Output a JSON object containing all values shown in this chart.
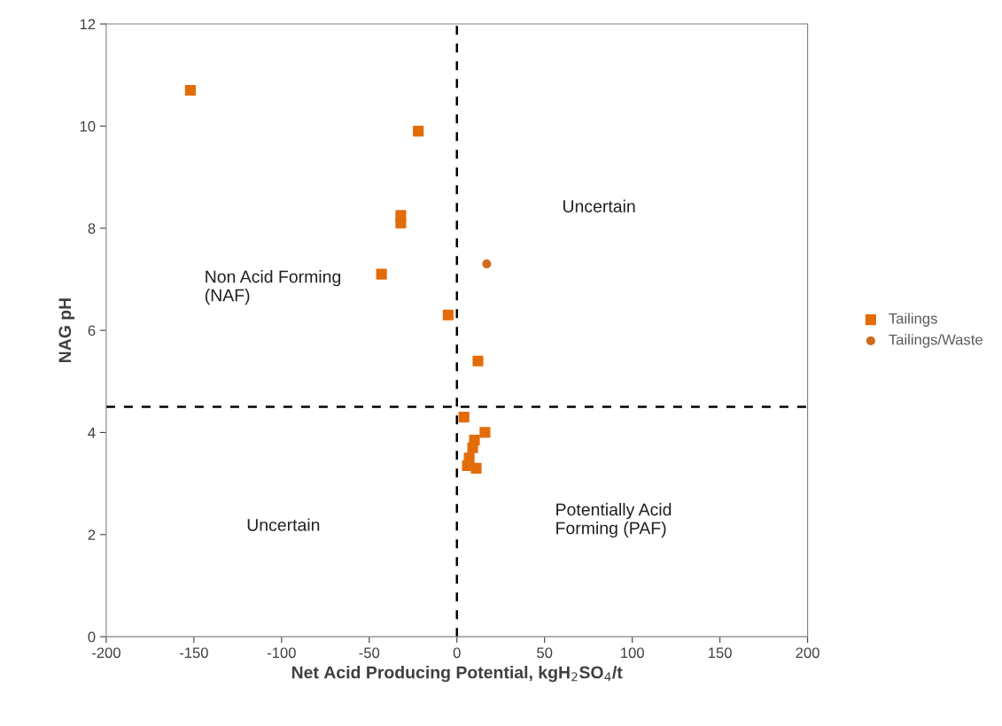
{
  "chart_data": {
    "type": "scatter",
    "xlabel": "Net Acid Producing Potential, kgH$_{2}$SO$_{4}$/t",
    "ylabel": "NAG pH",
    "series": [
      {
        "name": "Tailings",
        "color": "#e36c0a",
        "marker": "square",
        "x": [
          -152,
          -22,
          -32,
          -32,
          -43,
          -5,
          12,
          4,
          16,
          10,
          9,
          7,
          6,
          11
        ],
        "values": [
          10.7,
          9.9,
          8.25,
          8.1,
          7.1,
          6.3,
          5.4,
          4.3,
          4.0,
          3.85,
          3.7,
          3.5,
          3.35,
          3.3
        ]
      },
      {
        "name": "Tailings/Waste",
        "color": "#d2691e",
        "marker": "circle",
        "x": [
          17
        ],
        "values": [
          7.3
        ]
      }
    ],
    "xlim": [
      -200,
      200
    ],
    "xticks": [
      -200,
      -150,
      -100,
      -50,
      0,
      50,
      100,
      150,
      200
    ],
    "ylim": [
      0,
      12
    ],
    "yticks": [
      0,
      2,
      4,
      6,
      8,
      10,
      12
    ],
    "ref_lines": [
      {
        "axis": "x",
        "value": 0,
        "color": "#000000",
        "line_style": "dashed"
      },
      {
        "axis": "y",
        "value": 4.5,
        "color": "#000000",
        "line_style": "dashed"
      }
    ],
    "annotations": [
      "Non Acid Forming\n(NAF)",
      "Uncertain",
      "Uncertain",
      "Potentially Acid\nForming (PAF)"
    ],
    "grid": false,
    "legend": "right"
  }
}
